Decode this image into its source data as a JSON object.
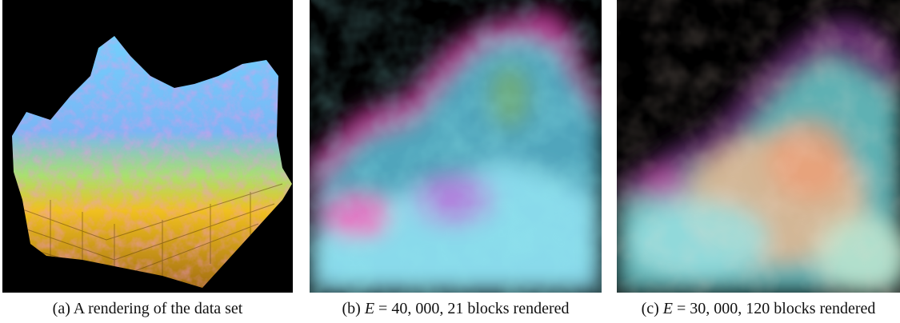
{
  "figures": [
    {
      "caption_prefix": "(a) A rendering of the data set",
      "variable": "",
      "equation": "",
      "suffix": ""
    },
    {
      "caption_prefix": "(b)",
      "variable": "E",
      "equation": "= 40, 000,",
      "suffix": "21 blocks rendered"
    },
    {
      "caption_prefix": "(c)",
      "variable": "E",
      "equation": "= 30, 000,",
      "suffix": "120 blocks rendered"
    }
  ],
  "colors": {
    "background": "#000000",
    "cyan": "#4fe3f0",
    "magenta": "#e040c8",
    "yellow": "#f0b020",
    "pink": "#ff60b0"
  }
}
